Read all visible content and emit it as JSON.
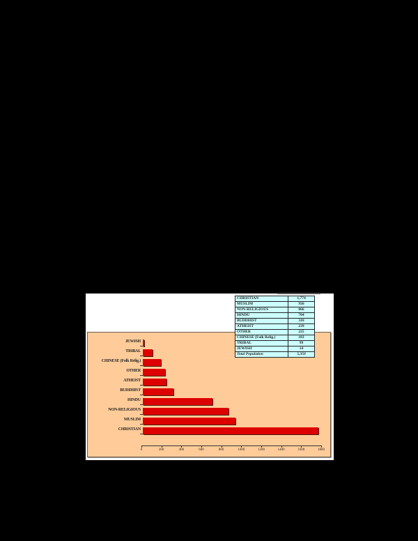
{
  "chart_data": {
    "type": "bar",
    "orientation": "horizontal",
    "title": "",
    "xlabel": "",
    "ylabel": "",
    "categories": [
      "JEWISH",
      "TRIBAL",
      "CHINESE (Folk Relig.)",
      "OTHER",
      "ATHEIST",
      "BUDDHIST",
      "HINDU",
      "NON-RELIGIOUS",
      "MUSLIM",
      "CHRISTIAN"
    ],
    "values": [
      14,
      99,
      183,
      225,
      239,
      310,
      704,
      866,
      936,
      1774
    ],
    "xlim": [
      0,
      1800
    ],
    "xticks": [
      "0",
      "200",
      "400",
      "600",
      "800",
      "1000",
      "1200",
      "1400",
      "1600",
      "1800"
    ],
    "grid": false,
    "bar_color": "#dd0000",
    "background_color": "#ffcc99",
    "table": {
      "rows": [
        {
          "label": "CHRISTIAN",
          "value": "1,774"
        },
        {
          "label": "MUSLIM",
          "value": "936"
        },
        {
          "label": "NON-RELIGIOUS",
          "value": "866"
        },
        {
          "label": "HINDU",
          "value": "704"
        },
        {
          "label": "BUDDHIST",
          "value": "310"
        },
        {
          "label": "ATHEIST",
          "value": "239"
        },
        {
          "label": "OTHER",
          "value": "225"
        },
        {
          "label": "CHINESE (Folk Relig.)",
          "value": "183"
        },
        {
          "label": "TRIBAL",
          "value": "99"
        },
        {
          "label": "JEWISH",
          "value": "14"
        },
        {
          "label": "Total Population",
          "value": "5,350"
        }
      ]
    }
  },
  "colors": {
    "page_background": "#000000",
    "sheet_background": "#ffffff",
    "plot_background": "#ffcc99",
    "bar": "#dd0000",
    "table_background": "#ccffff"
  }
}
